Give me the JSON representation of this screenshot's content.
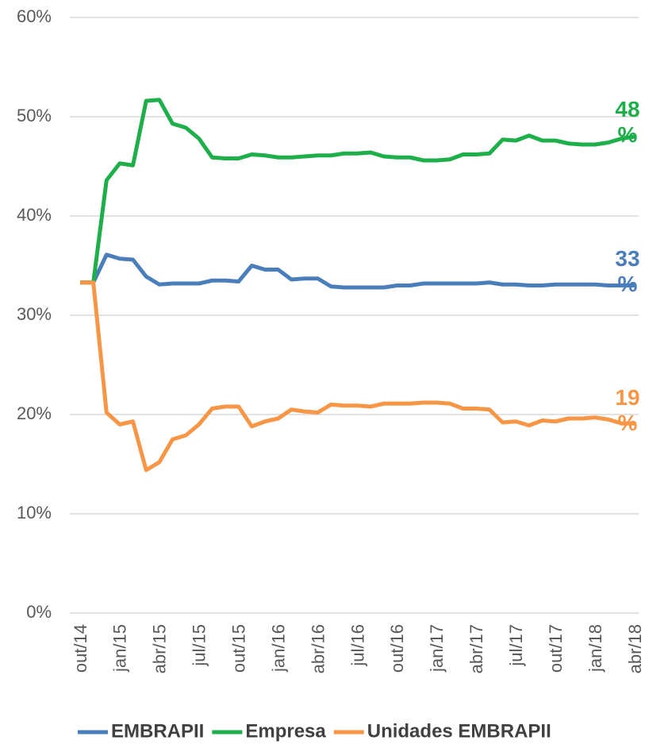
{
  "chart_data": {
    "type": "line",
    "categories": [
      "out/14",
      null,
      null,
      "jan/15",
      null,
      null,
      "abr/15",
      null,
      null,
      "jul/15",
      null,
      null,
      "out/15",
      null,
      null,
      "jan/16",
      null,
      null,
      "abr/16",
      null,
      null,
      "jul/16",
      null,
      null,
      "out/16",
      null,
      null,
      "jan/17",
      null,
      null,
      "abr/17",
      null,
      null,
      "jul/17",
      null,
      null,
      "out/17",
      null,
      null,
      "jan/18",
      null,
      null,
      "abr/18"
    ],
    "series": [
      {
        "name": "EMBRAPII",
        "color": "#4a7ebb",
        "end_value": 33,
        "end_label": "33 %",
        "values": [
          33.3,
          33.3,
          36.1,
          35.7,
          35.6,
          33.9,
          33.1,
          33.2,
          33.2,
          33.2,
          33.5,
          33.5,
          33.4,
          35.0,
          34.6,
          34.6,
          33.6,
          33.7,
          33.7,
          32.9,
          32.8,
          32.8,
          32.8,
          32.8,
          33.0,
          33.0,
          33.2,
          33.2,
          33.2,
          33.2,
          33.2,
          33.3,
          33.1,
          33.1,
          33.0,
          33.0,
          33.1,
          33.1,
          33.1,
          33.1,
          33.0,
          33.0,
          33.0
        ]
      },
      {
        "name": "Empresa",
        "color": "#1eae4a",
        "end_value": 48,
        "end_label": "48 %",
        "values": [
          33.3,
          33.3,
          43.6,
          45.3,
          45.1,
          51.6,
          51.7,
          49.3,
          48.9,
          47.8,
          45.9,
          45.8,
          45.8,
          46.2,
          46.1,
          45.9,
          45.9,
          46.0,
          46.1,
          46.1,
          46.3,
          46.3,
          46.4,
          46.0,
          45.9,
          45.9,
          45.6,
          45.6,
          45.7,
          46.2,
          46.2,
          46.3,
          47.7,
          47.6,
          48.1,
          47.6,
          47.6,
          47.3,
          47.2,
          47.2,
          47.4,
          47.8,
          48.0
        ]
      },
      {
        "name": "Unidades EMBRAPII",
        "color": "#f79646",
        "end_value": 19,
        "end_label": "19 %",
        "values": [
          33.3,
          33.3,
          20.2,
          19.0,
          19.3,
          14.4,
          15.2,
          17.5,
          17.9,
          19.0,
          20.6,
          20.8,
          20.8,
          18.8,
          19.3,
          19.6,
          20.5,
          20.3,
          20.2,
          21.0,
          20.9,
          20.9,
          20.8,
          21.1,
          21.1,
          21.1,
          21.2,
          21.2,
          21.1,
          20.6,
          20.6,
          20.5,
          19.2,
          19.3,
          18.9,
          19.4,
          19.3,
          19.6,
          19.6,
          19.7,
          19.5,
          19.1,
          19.1
        ]
      }
    ],
    "ylim": [
      0,
      60
    ],
    "yticks": [
      {
        "value": 0,
        "label": "0%"
      },
      {
        "value": 10,
        "label": "10%"
      },
      {
        "value": 20,
        "label": "20%"
      },
      {
        "value": 30,
        "label": "30%"
      },
      {
        "value": 40,
        "label": "40%"
      },
      {
        "value": 50,
        "label": "50%"
      },
      {
        "value": 60,
        "label": "60%"
      }
    ],
    "grid": true,
    "legend": "bottom"
  }
}
